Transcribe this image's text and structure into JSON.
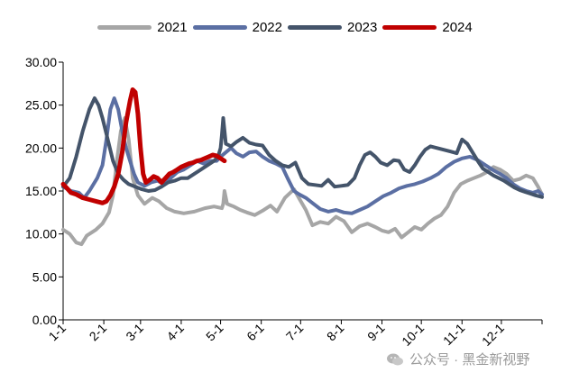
{
  "chart_data": {
    "type": "line",
    "title": "",
    "xlabel": "",
    "ylabel": "",
    "ylim": [
      0,
      30
    ],
    "yticks": [
      "0.00",
      "5.00",
      "10.00",
      "15.00",
      "20.00",
      "25.00",
      "30.00"
    ],
    "xticks": [
      "1-1",
      "2-1",
      "3-1",
      "4-1",
      "5-1",
      "6-1",
      "7-1",
      "8-1",
      "9-1",
      "10-1",
      "11-1",
      "12-1"
    ],
    "x_domain": [
      0,
      365
    ],
    "grid": false,
    "legend_position": "top-center",
    "series": [
      {
        "name": "2021",
        "color": "#a6a6a6",
        "points": [
          [
            0,
            10.5
          ],
          [
            5,
            10
          ],
          [
            10,
            9
          ],
          [
            14,
            8.8
          ],
          [
            18,
            9.8
          ],
          [
            25,
            10.5
          ],
          [
            30,
            11.2
          ],
          [
            35,
            12.5
          ],
          [
            38,
            14.5
          ],
          [
            41,
            18.5
          ],
          [
            44,
            22
          ],
          [
            47,
            23.5
          ],
          [
            50,
            21
          ],
          [
            53,
            16.5
          ],
          [
            57,
            14.5
          ],
          [
            62,
            13.5
          ],
          [
            68,
            14.2
          ],
          [
            73,
            13.8
          ],
          [
            79,
            13
          ],
          [
            85,
            12.6
          ],
          [
            92,
            12.4
          ],
          [
            100,
            12.6
          ],
          [
            108,
            13
          ],
          [
            115,
            13.2
          ],
          [
            121,
            13
          ],
          [
            122,
            13.5
          ],
          [
            123,
            15
          ],
          [
            125,
            13.5
          ],
          [
            130,
            13.2
          ],
          [
            135,
            12.8
          ],
          [
            140,
            12.5
          ],
          [
            146,
            12.2
          ],
          [
            152,
            12.7
          ],
          [
            158,
            13.3
          ],
          [
            163,
            12.6
          ],
          [
            169,
            14.2
          ],
          [
            176,
            15.2
          ],
          [
            180,
            14.1
          ],
          [
            185,
            12.8
          ],
          [
            190,
            11
          ],
          [
            196,
            11.4
          ],
          [
            202,
            11.2
          ],
          [
            208,
            12
          ],
          [
            214,
            11.5
          ],
          [
            220,
            10.2
          ],
          [
            226,
            10.9
          ],
          [
            232,
            11.2
          ],
          [
            238,
            10.8
          ],
          [
            243,
            10.4
          ],
          [
            248,
            10.2
          ],
          [
            253,
            10.6
          ],
          [
            258,
            9.6
          ],
          [
            263,
            10.2
          ],
          [
            268,
            10.8
          ],
          [
            273,
            10.5
          ],
          [
            278,
            11.2
          ],
          [
            283,
            11.8
          ],
          [
            288,
            12.2
          ],
          [
            293,
            13.2
          ],
          [
            298,
            14.8
          ],
          [
            303,
            15.8
          ],
          [
            308,
            16.2
          ],
          [
            313,
            16.5
          ],
          [
            318,
            16.8
          ],
          [
            323,
            17.2
          ],
          [
            328,
            17.8
          ],
          [
            333,
            17.5
          ],
          [
            338,
            17
          ],
          [
            343,
            16.2
          ],
          [
            348,
            16.4
          ],
          [
            353,
            16.8
          ],
          [
            358,
            16.5
          ],
          [
            362,
            15.5
          ],
          [
            365,
            14.6
          ]
        ]
      },
      {
        "name": "2022",
        "color": "#5b6fa3",
        "points": [
          [
            0,
            15.5
          ],
          [
            6,
            15
          ],
          [
            12,
            14.8
          ],
          [
            16,
            14.2
          ],
          [
            20,
            15
          ],
          [
            26,
            16.5
          ],
          [
            30,
            18
          ],
          [
            33,
            21
          ],
          [
            36,
            24.5
          ],
          [
            39,
            25.8
          ],
          [
            42,
            24.5
          ],
          [
            45,
            22
          ],
          [
            48,
            20
          ],
          [
            51,
            18.5
          ],
          [
            54,
            17
          ],
          [
            57,
            16
          ],
          [
            62,
            15.6
          ],
          [
            67,
            16
          ],
          [
            72,
            16.2
          ],
          [
            77,
            15.8
          ],
          [
            82,
            16.5
          ],
          [
            87,
            17.2
          ],
          [
            92,
            17.5
          ],
          [
            97,
            18
          ],
          [
            102,
            18.5
          ],
          [
            107,
            18.2
          ],
          [
            112,
            18.5
          ],
          [
            117,
            18.5
          ],
          [
            120,
            19
          ],
          [
            124,
            19.5
          ],
          [
            128,
            20
          ],
          [
            132,
            19.4
          ],
          [
            137,
            19
          ],
          [
            142,
            19.5
          ],
          [
            147,
            19.6
          ],
          [
            152,
            19
          ],
          [
            157,
            18.5
          ],
          [
            162,
            18.2
          ],
          [
            167,
            17.8
          ],
          [
            171,
            16.5
          ],
          [
            176,
            15
          ],
          [
            180,
            14.6
          ],
          [
            185,
            14.2
          ],
          [
            190,
            13.6
          ],
          [
            196,
            12.9
          ],
          [
            202,
            12.6
          ],
          [
            208,
            12.8
          ],
          [
            214,
            12.5
          ],
          [
            220,
            12.4
          ],
          [
            226,
            12.8
          ],
          [
            232,
            13.2
          ],
          [
            238,
            13.8
          ],
          [
            244,
            14.4
          ],
          [
            250,
            14.8
          ],
          [
            256,
            15.3
          ],
          [
            262,
            15.6
          ],
          [
            268,
            15.8
          ],
          [
            274,
            16.1
          ],
          [
            280,
            16.5
          ],
          [
            286,
            17
          ],
          [
            292,
            17.8
          ],
          [
            298,
            18.4
          ],
          [
            304,
            18.8
          ],
          [
            310,
            19
          ],
          [
            316,
            18.6
          ],
          [
            322,
            18
          ],
          [
            328,
            17.4
          ],
          [
            333,
            17
          ],
          [
            338,
            16.5
          ],
          [
            343,
            15.8
          ],
          [
            348,
            15.3
          ],
          [
            353,
            15
          ],
          [
            358,
            14.8
          ],
          [
            362,
            15
          ],
          [
            365,
            14.6
          ]
        ]
      },
      {
        "name": "2023",
        "color": "#44546a",
        "points": [
          [
            0,
            15.5
          ],
          [
            5,
            16.5
          ],
          [
            10,
            19
          ],
          [
            15,
            22
          ],
          [
            20,
            24.5
          ],
          [
            24,
            25.8
          ],
          [
            27,
            25
          ],
          [
            30,
            23.5
          ],
          [
            34,
            21
          ],
          [
            38,
            18.5
          ],
          [
            42,
            17
          ],
          [
            46,
            16.3
          ],
          [
            50,
            15.8
          ],
          [
            55,
            15.5
          ],
          [
            60,
            15.2
          ],
          [
            65,
            15
          ],
          [
            70,
            15.1
          ],
          [
            75,
            15.5
          ],
          [
            80,
            16
          ],
          [
            85,
            16.2
          ],
          [
            90,
            16.5
          ],
          [
            95,
            16.5
          ],
          [
            100,
            17
          ],
          [
            105,
            17.5
          ],
          [
            110,
            18
          ],
          [
            115,
            18.5
          ],
          [
            118,
            19
          ],
          [
            120,
            20
          ],
          [
            121,
            21.5
          ],
          [
            122,
            23.5
          ],
          [
            124,
            20.5
          ],
          [
            128,
            20.2
          ],
          [
            132,
            20.7
          ],
          [
            137,
            21.2
          ],
          [
            142,
            20.6
          ],
          [
            147,
            20.4
          ],
          [
            152,
            20.3
          ],
          [
            157,
            19.2
          ],
          [
            162,
            18.5
          ],
          [
            167,
            18
          ],
          [
            172,
            17.8
          ],
          [
            177,
            18.3
          ],
          [
            182,
            16.5
          ],
          [
            187,
            15.8
          ],
          [
            192,
            15.7
          ],
          [
            197,
            15.6
          ],
          [
            202,
            16.3
          ],
          [
            207,
            15.5
          ],
          [
            212,
            15.6
          ],
          [
            217,
            15.7
          ],
          [
            222,
            16.5
          ],
          [
            226,
            18
          ],
          [
            230,
            19.2
          ],
          [
            234,
            19.5
          ],
          [
            238,
            19
          ],
          [
            242,
            18.3
          ],
          [
            247,
            18
          ],
          [
            252,
            18.6
          ],
          [
            256,
            18.5
          ],
          [
            260,
            17.5
          ],
          [
            264,
            17.2
          ],
          [
            268,
            18
          ],
          [
            272,
            19
          ],
          [
            276,
            19.8
          ],
          [
            280,
            20.2
          ],
          [
            285,
            20
          ],
          [
            290,
            19.8
          ],
          [
            295,
            19.6
          ],
          [
            300,
            19.4
          ],
          [
            304,
            21
          ],
          [
            308,
            20.5
          ],
          [
            312,
            19.5
          ],
          [
            316,
            18.5
          ],
          [
            320,
            17.6
          ],
          [
            324,
            17.2
          ],
          [
            328,
            16.8
          ],
          [
            332,
            16.5
          ],
          [
            336,
            16.2
          ],
          [
            340,
            15.8
          ],
          [
            344,
            15.4
          ],
          [
            348,
            15.1
          ],
          [
            352,
            14.9
          ],
          [
            356,
            14.7
          ],
          [
            360,
            14.5
          ],
          [
            365,
            14.3
          ]
        ]
      },
      {
        "name": "2024",
        "color": "#c00000",
        "points": [
          [
            0,
            15.8
          ],
          [
            3,
            15.3
          ],
          [
            6,
            14.8
          ],
          [
            10,
            14.6
          ],
          [
            15,
            14.2
          ],
          [
            20,
            14
          ],
          [
            25,
            13.8
          ],
          [
            30,
            13.6
          ],
          [
            33,
            13.8
          ],
          [
            36,
            14.5
          ],
          [
            39,
            15.5
          ],
          [
            42,
            17
          ],
          [
            45,
            19.5
          ],
          [
            48,
            23
          ],
          [
            51,
            25.5
          ],
          [
            53,
            26.8
          ],
          [
            55,
            26.5
          ],
          [
            57,
            24
          ],
          [
            59,
            20
          ],
          [
            61,
            17
          ],
          [
            63,
            16
          ],
          [
            66,
            16.3
          ],
          [
            69,
            16.7
          ],
          [
            72,
            16.5
          ],
          [
            75,
            16
          ],
          [
            78,
            16.5
          ],
          [
            81,
            17
          ],
          [
            84,
            17.2
          ],
          [
            87,
            17.5
          ],
          [
            90,
            17.8
          ],
          [
            93,
            18
          ],
          [
            96,
            18.2
          ],
          [
            99,
            18.3
          ],
          [
            102,
            18.5
          ],
          [
            105,
            18.6
          ],
          [
            108,
            18.8
          ],
          [
            111,
            19
          ],
          [
            114,
            19.2
          ],
          [
            117,
            19.1
          ],
          [
            120,
            18.8
          ],
          [
            123,
            18.5
          ]
        ]
      }
    ]
  },
  "watermark": {
    "icon": "wechat-icon",
    "text": "公众号 · 黑金新视野"
  }
}
